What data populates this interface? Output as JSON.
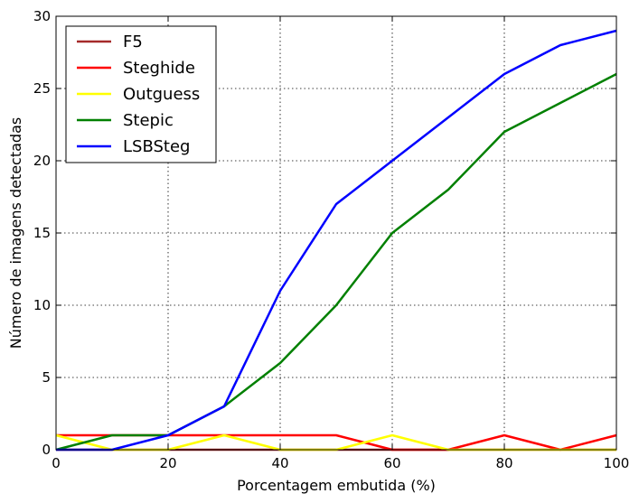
{
  "chart_data": {
    "type": "line",
    "title": "",
    "xlabel": "Porcentagem embutida (%)",
    "ylabel": "Número de imagens detectadas",
    "xlim": [
      0,
      100
    ],
    "ylim": [
      0,
      30
    ],
    "xticks": [
      0,
      20,
      40,
      60,
      80,
      100
    ],
    "yticks": [
      0,
      5,
      10,
      15,
      20,
      25,
      30
    ],
    "grid": true,
    "legend_position": "top-left",
    "x": [
      0,
      10,
      20,
      30,
      40,
      50,
      60,
      70,
      80,
      90,
      100
    ],
    "series": [
      {
        "name": "F5",
        "color": "#a52a2a",
        "values": [
          0,
          0,
          0,
          0,
          0,
          0,
          0,
          0,
          0,
          0,
          0
        ]
      },
      {
        "name": "Steghide",
        "color": "#ff0000",
        "values": [
          1,
          1,
          1,
          1,
          1,
          1,
          0,
          0,
          1,
          0,
          1
        ]
      },
      {
        "name": "Outguess",
        "color": "#ffff00",
        "values": [
          1,
          0,
          0,
          1,
          0,
          0,
          1,
          0,
          0,
          0,
          0
        ]
      },
      {
        "name": "Stepic",
        "color": "#008000",
        "values": [
          0,
          1,
          1,
          3,
          6,
          10,
          15,
          18,
          22,
          24,
          26
        ]
      },
      {
        "name": "LSBSteg",
        "color": "#0000ff",
        "values": [
          0,
          0,
          1,
          3,
          11,
          17,
          20,
          23,
          26,
          28,
          29
        ]
      }
    ]
  }
}
